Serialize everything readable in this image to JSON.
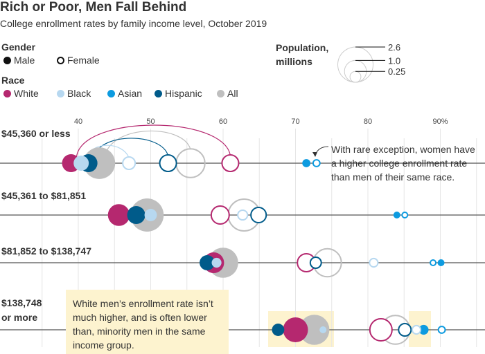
{
  "title": "Rich or Poor, Men Fall Behind",
  "subtitle": "College enrollment rates by family income level, October 2019",
  "legend": {
    "gender_label": "Gender",
    "male": "Male",
    "female": "Female",
    "race_label": "Race",
    "races": [
      {
        "name": "White",
        "color": "#b5286f"
      },
      {
        "name": "Black",
        "color": "#b7d8f0"
      },
      {
        "name": "Asian",
        "color": "#0d9be0"
      },
      {
        "name": "Hispanic",
        "color": "#005b8a"
      },
      {
        "name": "All",
        "color": "#bfbfbf"
      }
    ],
    "population_label": "Population,",
    "population_label2": "millions",
    "population_sizes": [
      "2.6",
      "1.0",
      "0.25"
    ]
  },
  "annotations": {
    "women": "With rare exception, women have a higher college enrollment rate than men of their same race.",
    "women_lines": [
      "With rare exception, women have",
      "a higher college enrollment rate",
      "than men of their same race."
    ],
    "box_lines": [
      "White men’s enrollment rate isn’t",
      "much higher, and is often lower",
      "than, minority men in the same",
      "income group."
    ]
  },
  "chart_data": {
    "type": "scatter",
    "title": "Rich or Poor, Men Fall Behind",
    "xlabel": "",
    "ylabel": "",
    "xlim": [
      30,
      96
    ],
    "x_ticks": [
      40,
      50,
      60,
      70,
      80,
      90
    ],
    "x_tick_labels": [
      "40",
      "50",
      "60",
      "70",
      "80",
      "90%"
    ],
    "grid": true,
    "categories": [
      "$45,360 or less",
      "$45,361 to $81,851",
      "$81,852 to $138,747",
      "$138,748 or more"
    ],
    "category_label_lines": [
      [
        "$45,360 or less"
      ],
      [
        "$45,361 to $81,851"
      ],
      [
        "$81,852 to $138,747"
      ],
      [
        "$138,748",
        "or more"
      ]
    ],
    "size_unit": "population, millions",
    "rows": [
      [
        {
          "race": "All",
          "gender": "Male",
          "rate": 42.9,
          "pop": 2.1
        },
        {
          "race": "White",
          "gender": "Male",
          "rate": 39.0,
          "pop": 0.68
        },
        {
          "race": "Hispanic",
          "gender": "Male",
          "rate": 41.4,
          "pop": 0.68
        },
        {
          "race": "Black",
          "gender": "Male",
          "rate": 40.4,
          "pop": 0.48
        },
        {
          "race": "Asian",
          "gender": "Male",
          "rate": 71.5,
          "pop": 0.14
        },
        {
          "race": "All",
          "gender": "Female",
          "rate": 55.5,
          "pop": 1.9
        },
        {
          "race": "White",
          "gender": "Female",
          "rate": 61.0,
          "pop": 0.68
        },
        {
          "race": "Hispanic",
          "gender": "Female",
          "rate": 52.4,
          "pop": 0.68
        },
        {
          "race": "Black",
          "gender": "Female",
          "rate": 47.0,
          "pop": 0.4
        },
        {
          "race": "Asian",
          "gender": "Female",
          "rate": 72.9,
          "pop": 0.14
        }
      ],
      [
        {
          "race": "All",
          "gender": "Male",
          "rate": 49.5,
          "pop": 2.3
        },
        {
          "race": "White",
          "gender": "Male",
          "rate": 45.6,
          "pop": 1.0
        },
        {
          "race": "Hispanic",
          "gender": "Male",
          "rate": 48.0,
          "pop": 0.68
        },
        {
          "race": "Black",
          "gender": "Male",
          "rate": 50.0,
          "pop": 0.32
        },
        {
          "race": "Asian",
          "gender": "Male",
          "rate": 84.0,
          "pop": 0.1
        },
        {
          "race": "All",
          "gender": "Female",
          "rate": 62.9,
          "pop": 2.3
        },
        {
          "race": "White",
          "gender": "Female",
          "rate": 59.6,
          "pop": 0.78
        },
        {
          "race": "Hispanic",
          "gender": "Female",
          "rate": 64.9,
          "pop": 0.58
        },
        {
          "race": "Black",
          "gender": "Female",
          "rate": 62.7,
          "pop": 0.26
        },
        {
          "race": "Asian",
          "gender": "Female",
          "rate": 85.1,
          "pop": 0.1
        }
      ],
      [
        {
          "race": "All",
          "gender": "Male",
          "rate": 60.0,
          "pop": 1.9
        },
        {
          "race": "White",
          "gender": "Male",
          "rate": 58.7,
          "pop": 0.9
        },
        {
          "race": "Hispanic",
          "gender": "Male",
          "rate": 57.8,
          "pop": 0.48
        },
        {
          "race": "Black",
          "gender": "Male",
          "rate": 59.1,
          "pop": 0.2
        },
        {
          "race": "Asian",
          "gender": "Male",
          "rate": 90.1,
          "pop": 0.1
        },
        {
          "race": "All",
          "gender": "Female",
          "rate": 74.4,
          "pop": 1.8
        },
        {
          "race": "White",
          "gender": "Female",
          "rate": 71.5,
          "pop": 0.78
        },
        {
          "race": "Hispanic",
          "gender": "Female",
          "rate": 72.8,
          "pop": 0.32
        },
        {
          "race": "Black",
          "gender": "Female",
          "rate": 80.8,
          "pop": 0.2
        },
        {
          "race": "Asian",
          "gender": "Female",
          "rate": 89.0,
          "pop": 0.1
        }
      ],
      [
        {
          "race": "All",
          "gender": "Male",
          "rate": 72.6,
          "pop": 1.9
        },
        {
          "race": "White",
          "gender": "Male",
          "rate": 70.0,
          "pop": 1.3
        },
        {
          "race": "Hispanic",
          "gender": "Male",
          "rate": 67.6,
          "pop": 0.32
        },
        {
          "race": "Black",
          "gender": "Male",
          "rate": 73.8,
          "pop": 0.1
        },
        {
          "race": "Asian",
          "gender": "Male",
          "rate": 87.7,
          "pop": 0.2
        },
        {
          "race": "All",
          "gender": "Female",
          "rate": 83.8,
          "pop": 1.9
        },
        {
          "race": "White",
          "gender": "Female",
          "rate": 81.8,
          "pop": 1.16
        },
        {
          "race": "Hispanic",
          "gender": "Female",
          "rate": 85.1,
          "pop": 0.4
        },
        {
          "race": "Black",
          "gender": "Female",
          "rate": 86.7,
          "pop": 0.2
        },
        {
          "race": "Asian",
          "gender": "Female",
          "rate": 90.2,
          "pop": 0.14
        }
      ]
    ]
  }
}
